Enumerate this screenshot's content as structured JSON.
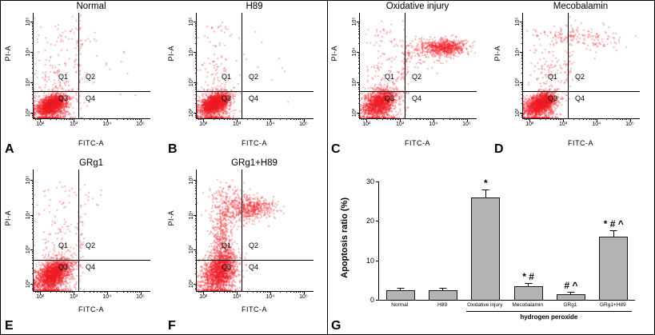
{
  "figure": {
    "dot_color": "#ed1c24",
    "axis": {
      "min": 1.8,
      "max": 5.3,
      "gate_x": 3.15,
      "gate_y": 2.7,
      "ticks": [
        {
          "v": 2,
          "label": "10²"
        },
        {
          "v": 3,
          "label": "10³"
        },
        {
          "v": 4,
          "label": "10⁴"
        },
        {
          "v": 5,
          "label": "10⁵"
        }
      ]
    },
    "panels": [
      {
        "letter": "A",
        "title": "Normal",
        "xlabel": "FITC-A",
        "ylabel": "PI-A",
        "quadrants": [
          "Q1",
          "Q2",
          "Q3",
          "Q4"
        ],
        "clusters": [
          [
            2.35,
            2.25,
            0.22,
            0.17,
            1700,
            0.45
          ],
          [
            2.3,
            1.95,
            0.3,
            0.3,
            400,
            0
          ],
          [
            2.45,
            3.1,
            0.28,
            0.45,
            90,
            0
          ],
          [
            2.7,
            4.45,
            0.45,
            0.3,
            40,
            0
          ],
          [
            3.15,
            3.6,
            0.06,
            0.7,
            50,
            0
          ],
          [
            3.6,
            3.4,
            0.9,
            0.8,
            25,
            0
          ]
        ]
      },
      {
        "letter": "B",
        "title": "H89",
        "xlabel": "FITC-A",
        "ylabel": "PI-A",
        "quadrants": [
          "Q1",
          "Q2",
          "Q3",
          "Q4"
        ],
        "clusters": [
          [
            2.35,
            2.3,
            0.22,
            0.18,
            1700,
            0.45
          ],
          [
            2.3,
            1.95,
            0.28,
            0.3,
            350,
            0
          ],
          [
            2.4,
            3.2,
            0.25,
            0.5,
            80,
            0
          ],
          [
            2.4,
            4.5,
            0.3,
            0.25,
            25,
            0
          ],
          [
            3.3,
            3.4,
            0.8,
            0.7,
            20,
            0
          ]
        ]
      },
      {
        "letter": "C",
        "title": "Oxidative injury",
        "xlabel": "FITC-A",
        "ylabel": "PI-A",
        "quadrants": [
          "Q1",
          "Q2",
          "Q3",
          "Q4"
        ],
        "clusters": [
          [
            2.4,
            2.35,
            0.25,
            0.22,
            1400,
            0.4
          ],
          [
            2.35,
            1.95,
            0.3,
            0.3,
            300,
            0
          ],
          [
            4.35,
            4.15,
            0.35,
            0.13,
            700,
            0
          ],
          [
            3.7,
            4.0,
            0.45,
            0.25,
            120,
            0
          ],
          [
            3.15,
            3.5,
            0.07,
            0.75,
            70,
            0
          ],
          [
            2.6,
            3.2,
            0.3,
            0.5,
            80,
            0
          ],
          [
            2.5,
            4.6,
            0.3,
            0.25,
            30,
            0
          ]
        ]
      },
      {
        "letter": "D",
        "title": "Mecobalamin",
        "xlabel": "FITC-A",
        "ylabel": "PI-A",
        "quadrants": [
          "Q1",
          "Q2",
          "Q3",
          "Q4"
        ],
        "clusters": [
          [
            2.35,
            2.3,
            0.22,
            0.18,
            1600,
            0.45
          ],
          [
            2.3,
            1.95,
            0.28,
            0.3,
            350,
            0
          ],
          [
            3.3,
            4.55,
            0.65,
            0.17,
            140,
            0
          ],
          [
            2.55,
            3.3,
            0.3,
            0.5,
            90,
            0
          ],
          [
            3.15,
            3.6,
            0.07,
            0.65,
            45,
            0
          ],
          [
            4.2,
            4.35,
            0.3,
            0.2,
            40,
            0
          ]
        ]
      },
      {
        "letter": "E",
        "title": "GRg1",
        "xlabel": "FITC-A",
        "ylabel": "PI-A",
        "quadrants": [
          "Q1",
          "Q2",
          "Q3",
          "Q4"
        ],
        "clusters": [
          [
            2.4,
            2.3,
            0.26,
            0.22,
            1800,
            0.45
          ],
          [
            2.35,
            1.95,
            0.3,
            0.3,
            350,
            0
          ],
          [
            2.5,
            3.3,
            0.3,
            0.5,
            90,
            0
          ],
          [
            2.9,
            4.45,
            0.5,
            0.25,
            35,
            0
          ],
          [
            3.2,
            3.4,
            0.07,
            0.65,
            40,
            0
          ]
        ]
      },
      {
        "letter": "F",
        "title": "GRg1+H89",
        "xlabel": "FITC-A",
        "ylabel": "PI-A",
        "quadrants": [
          "Q1",
          "Q2",
          "Q3",
          "Q4"
        ],
        "clusters": [
          [
            2.5,
            2.4,
            0.25,
            0.28,
            1500,
            0.35
          ],
          [
            2.45,
            1.95,
            0.3,
            0.3,
            300,
            0
          ],
          [
            2.55,
            3.3,
            0.18,
            0.55,
            450,
            0
          ],
          [
            3.5,
            4.2,
            0.35,
            0.15,
            450,
            0
          ],
          [
            2.95,
            4.05,
            0.35,
            0.28,
            150,
            0
          ],
          [
            2.7,
            4.55,
            0.3,
            0.18,
            80,
            0
          ]
        ]
      }
    ]
  },
  "chart_data": {
    "type": "bar",
    "panel_label": "G",
    "title": "",
    "ylabel": "Apoptosis ratio (%)",
    "xlabel": "",
    "categories": [
      "Normal",
      "H89",
      "Oxidative injury",
      "Mecobalamin",
      "GRg1",
      "GRg1+H89"
    ],
    "values": [
      2.4,
      2.4,
      26,
      3.5,
      1.4,
      16
    ],
    "errors": [
      0.4,
      0.4,
      1.8,
      0.5,
      0.4,
      1.5
    ],
    "annotations": [
      "",
      "",
      "*",
      "* #",
      "# ^",
      "* # ^"
    ],
    "ylim": [
      0,
      30
    ],
    "yticks": [
      0,
      10,
      20,
      30
    ],
    "grid": false,
    "legend": "none",
    "bar_color": "#b3b3b3",
    "group_label": "hydrogen peroxide",
    "group_span": [
      2,
      5
    ]
  }
}
